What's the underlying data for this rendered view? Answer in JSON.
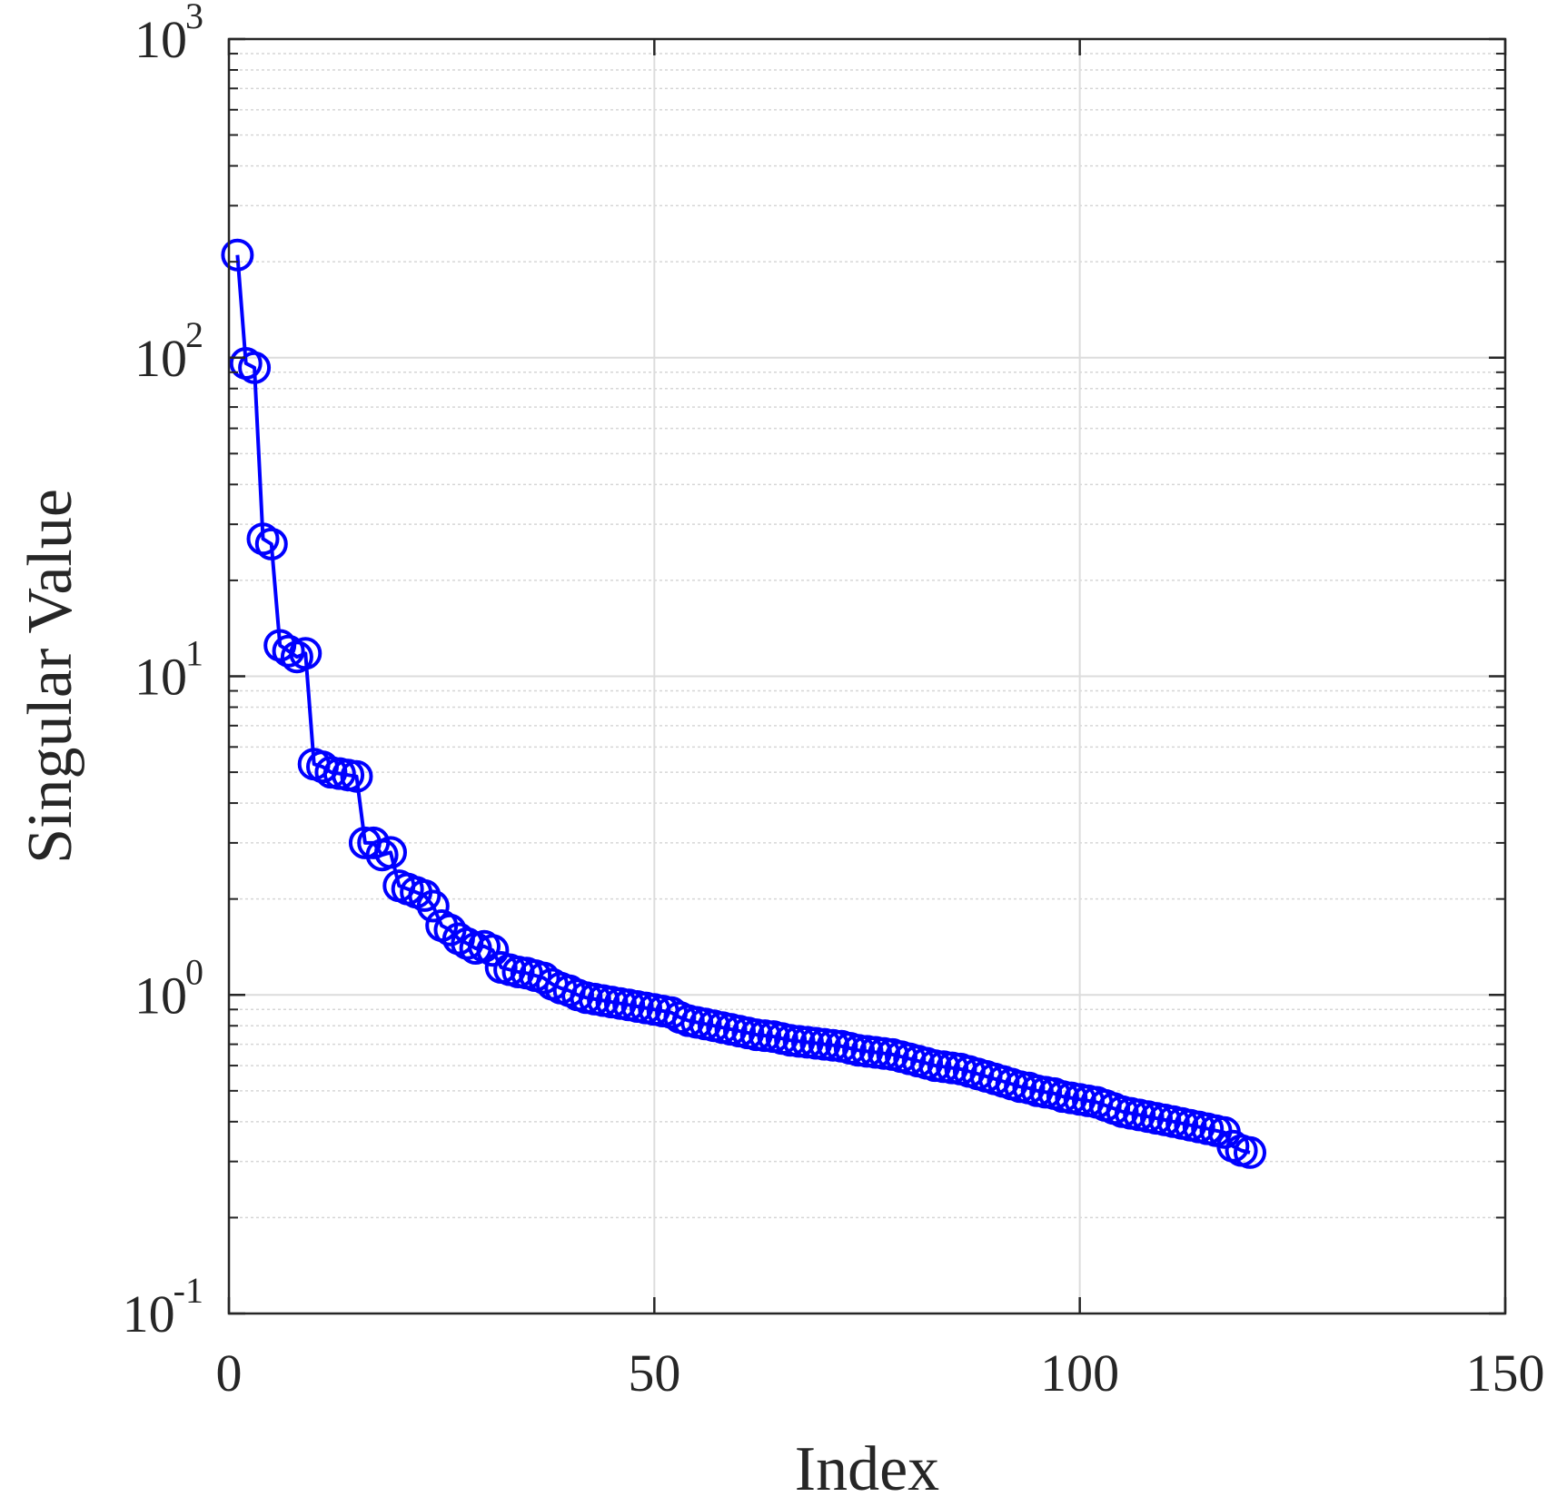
{
  "chart_data": {
    "type": "line",
    "title": "",
    "xlabel": "Index",
    "ylabel": "Singular Value",
    "xlim": [
      0,
      150
    ],
    "ylim": [
      0.1,
      1000
    ],
    "yscale": "log",
    "xticks": [
      0,
      50,
      100,
      150
    ],
    "xtick_labels": [
      "0",
      "50",
      "100",
      "150"
    ],
    "yticks": [
      0.1,
      1,
      10,
      100,
      1000
    ],
    "ytick_labels": [
      {
        "base": "10",
        "exp": "-1"
      },
      {
        "base": "10",
        "exp": "0"
      },
      {
        "base": "10",
        "exp": "1"
      },
      {
        "base": "10",
        "exp": "2"
      },
      {
        "base": "10",
        "exp": "3"
      }
    ],
    "grid": true,
    "minor_grid": true,
    "legend": "none",
    "marker": "circle-open",
    "color": "#0000ff",
    "series": [
      {
        "x": [
          1,
          2,
          3,
          4,
          5,
          6,
          7,
          8,
          9,
          10,
          11,
          12,
          13,
          14,
          15,
          16,
          17,
          18,
          19,
          20,
          21,
          22,
          23,
          24,
          25,
          26,
          27,
          28,
          29,
          30,
          31,
          32,
          33,
          34,
          35,
          36,
          37,
          38,
          39,
          40,
          41,
          42,
          43,
          44,
          45,
          46,
          47,
          48,
          49,
          50,
          51,
          52,
          53,
          54,
          55,
          56,
          57,
          58,
          59,
          60,
          61,
          62,
          63,
          64,
          65,
          66,
          67,
          68,
          69,
          70,
          71,
          72,
          73,
          74,
          75,
          76,
          77,
          78,
          79,
          80,
          81,
          82,
          83,
          84,
          85,
          86,
          87,
          88,
          89,
          90,
          91,
          92,
          93,
          94,
          95,
          96,
          97,
          98,
          99,
          100,
          101,
          102,
          103,
          104,
          105,
          106,
          107,
          108,
          109,
          110,
          111,
          112,
          113,
          114,
          115,
          116,
          117,
          118,
          119,
          120
        ],
        "values": [
          210,
          96,
          93,
          27,
          26,
          12.5,
          12,
          11.5,
          11.8,
          5.3,
          5.2,
          5.0,
          4.95,
          4.9,
          4.85,
          3.0,
          3.0,
          2.75,
          2.8,
          2.2,
          2.15,
          2.1,
          2.05,
          1.9,
          1.65,
          1.6,
          1.5,
          1.45,
          1.4,
          1.42,
          1.38,
          1.22,
          1.2,
          1.18,
          1.17,
          1.15,
          1.13,
          1.08,
          1.05,
          1.03,
          1.0,
          0.98,
          0.97,
          0.96,
          0.95,
          0.94,
          0.93,
          0.92,
          0.91,
          0.9,
          0.89,
          0.88,
          0.85,
          0.83,
          0.82,
          0.81,
          0.8,
          0.79,
          0.78,
          0.77,
          0.76,
          0.75,
          0.745,
          0.74,
          0.73,
          0.72,
          0.715,
          0.71,
          0.705,
          0.7,
          0.695,
          0.69,
          0.68,
          0.67,
          0.665,
          0.66,
          0.655,
          0.65,
          0.64,
          0.63,
          0.62,
          0.61,
          0.6,
          0.595,
          0.59,
          0.585,
          0.575,
          0.565,
          0.555,
          0.545,
          0.535,
          0.525,
          0.515,
          0.51,
          0.5,
          0.495,
          0.49,
          0.48,
          0.475,
          0.47,
          0.465,
          0.46,
          0.45,
          0.44,
          0.43,
          0.425,
          0.42,
          0.415,
          0.41,
          0.405,
          0.4,
          0.395,
          0.39,
          0.385,
          0.38,
          0.375,
          0.37,
          0.335,
          0.325,
          0.32
        ]
      }
    ]
  }
}
